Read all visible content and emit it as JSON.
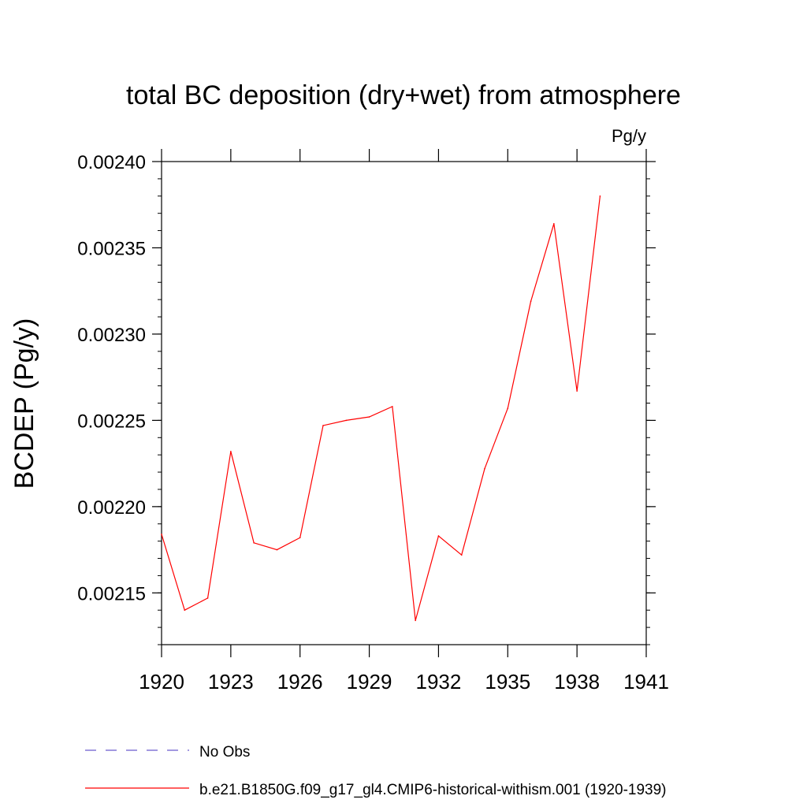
{
  "chart_data": {
    "type": "line",
    "title": "total BC deposition (dry+wet) from atmosphere",
    "units_label": "Pg/y",
    "ylabel": "BCDEP  (Pg/y)",
    "xlabel": "",
    "xlim": [
      1920,
      1941
    ],
    "ylim": [
      0.00212,
      0.0024
    ],
    "x_ticks": [
      1920,
      1923,
      1926,
      1929,
      1932,
      1935,
      1938,
      1941
    ],
    "x_tick_labels": [
      "1920",
      "1923",
      "1926",
      "1929",
      "1932",
      "1935",
      "1938",
      "1941"
    ],
    "y_ticks": [
      0.00215,
      0.0022,
      0.00225,
      0.0023,
      0.00235,
      0.0024
    ],
    "y_tick_labels": [
      "0.00215",
      "0.00220",
      "0.00225",
      "0.00230",
      "0.00235",
      "0.00240"
    ],
    "grid": false,
    "legend_position": "bottom",
    "series": [
      {
        "name": "b.e21.B1850G.f09_g17_gl4.CMIP6-historical-withism.001 (1920-1939)",
        "color": "#ff0000",
        "dash": "solid",
        "x": [
          1920,
          1921,
          1922,
          1923,
          1924,
          1925,
          1926,
          1927,
          1928,
          1929,
          1930,
          1931,
          1932,
          1933,
          1934,
          1935,
          1936,
          1937,
          1938,
          1939
        ],
        "values": [
          0.002184,
          0.00214,
          0.002147,
          0.002232,
          0.002179,
          0.002175,
          0.002182,
          0.002247,
          0.00225,
          0.002252,
          0.002258,
          0.002134,
          0.002183,
          0.002172,
          0.002222,
          0.002257,
          0.002319,
          0.002364,
          0.002267,
          0.00238
        ]
      }
    ],
    "legend": [
      {
        "label": "No Obs",
        "color": "#6a5acd",
        "dash": "dashed"
      },
      {
        "label": "b.e21.B1850G.f09_g17_gl4.CMIP6-historical-withism.001 (1920-1939)",
        "color": "#ff0000",
        "dash": "solid"
      }
    ]
  }
}
